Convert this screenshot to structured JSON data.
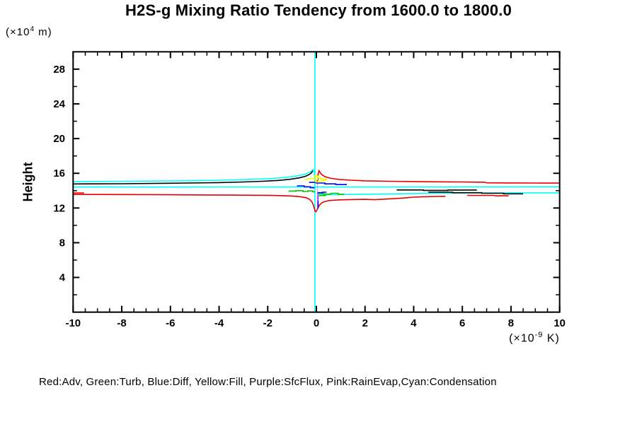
{
  "title": "H2S-g Mixing Ratio Tendency from 1600.0 to 1800.0",
  "axes": {
    "y": {
      "label": "Height",
      "unit_prefix": "(×10",
      "unit_sup": "4",
      "unit_suffix": " m)",
      "min": 0,
      "max": 30,
      "minor_step": 2,
      "major_ticks": [
        4,
        8,
        12,
        16,
        20,
        24,
        28
      ],
      "tick_labels": [
        "4",
        "8",
        "12",
        "16",
        "20",
        "24",
        "28"
      ]
    },
    "x": {
      "unit_prefix": "(×10",
      "unit_sup": "-9",
      "unit_suffix": " K)",
      "min": -10,
      "max": 10,
      "minor_step": 0.5,
      "major_ticks": [
        -10,
        -8,
        -6,
        -4,
        -2,
        0,
        2,
        4,
        6,
        8,
        10
      ],
      "tick_labels": [
        "-10",
        "-8",
        "-6",
        "-4",
        "-2",
        "0",
        "2",
        "4",
        "6",
        "8",
        "10"
      ]
    }
  },
  "legend": {
    "text": "Red:Adv, Green:Turb, Blue:Diff, Yellow:Fill, Purple:SfcFlux, Pink:RainEvap,Cyan:Condensation",
    "entries": [
      {
        "name": "Adv",
        "color": "#e80000"
      },
      {
        "name": "Turb",
        "color": "#00c800"
      },
      {
        "name": "Diff",
        "color": "#0000ff"
      },
      {
        "name": "Fill",
        "color": "#ffff00"
      },
      {
        "name": "SfcFlux",
        "color": "#a020f0"
      },
      {
        "name": "RainEvap",
        "color": "#f0a0f0"
      },
      {
        "name": "Condensation",
        "color": "#00ffff"
      }
    ]
  },
  "chart_data": {
    "type": "line",
    "subtype": "contour-tendency-profile",
    "title": "H2S-g Mixing Ratio Tendency from 1600.0 to 1800.0",
    "xlabel": "(×10^-9 K)",
    "ylabel": "Height (×10^4 m)",
    "xlim": [
      -10,
      10
    ],
    "ylim": [
      0,
      30
    ],
    "grid": false,
    "contours": [
      {
        "name": "condensation-vline",
        "color": "#00ffff",
        "points": [
          [
            -0.06,
            0.05
          ],
          [
            -0.06,
            29.95
          ]
        ]
      },
      {
        "name": "rainevap-vline",
        "color": "#f0a0f0",
        "points": [
          [
            0.045,
            11.8
          ],
          [
            0.045,
            15.9
          ]
        ]
      },
      {
        "name": "sfcflux-vline",
        "color": "#a020f0",
        "points": [
          [
            0.07,
            12.95
          ],
          [
            0.07,
            13.75
          ]
        ]
      },
      {
        "name": "condensation-left-curve",
        "color": "#00ffff",
        "points": [
          [
            -10,
            15.05
          ],
          [
            -8,
            15.08
          ],
          [
            -6,
            15.12
          ],
          [
            -5,
            15.15
          ],
          [
            -4,
            15.2
          ],
          [
            -3,
            15.27
          ],
          [
            -2.2,
            15.35
          ],
          [
            -1.6,
            15.45
          ],
          [
            -1.1,
            15.58
          ],
          [
            -0.75,
            15.72
          ],
          [
            -0.5,
            15.88
          ],
          [
            -0.32,
            16.05
          ],
          [
            -0.2,
            16.25
          ],
          [
            -0.13,
            16.45
          ],
          [
            -0.1,
            16.2
          ],
          [
            -0.07,
            15.6
          ],
          [
            -0.06,
            15.0
          ]
        ]
      },
      {
        "name": "adv-top-right-curve",
        "color": "#e80000",
        "points": [
          [
            0.03,
            14.95
          ],
          [
            0.05,
            15.5
          ],
          [
            0.08,
            15.95
          ],
          [
            0.11,
            16.3
          ],
          [
            0.15,
            16.1
          ],
          [
            0.22,
            15.85
          ],
          [
            0.35,
            15.62
          ],
          [
            0.55,
            15.45
          ],
          [
            0.9,
            15.3
          ],
          [
            1.4,
            15.2
          ],
          [
            2,
            15.13
          ],
          [
            3,
            15.08
          ],
          [
            4,
            15.05
          ],
          [
            5,
            15.02
          ],
          [
            6,
            15.0
          ],
          [
            6.9,
            14.97
          ],
          [
            7.0,
            14.9
          ],
          [
            8,
            14.89
          ],
          [
            9,
            14.88
          ],
          [
            10,
            14.87
          ]
        ]
      },
      {
        "name": "total-left-curve",
        "color": "#000000",
        "points": [
          [
            -10,
            14.77
          ],
          [
            -8,
            14.8
          ],
          [
            -6,
            14.85
          ],
          [
            -4,
            14.93
          ],
          [
            -3,
            15.0
          ],
          [
            -2.2,
            15.08
          ],
          [
            -1.6,
            15.17
          ],
          [
            -1.1,
            15.3
          ],
          [
            -0.7,
            15.47
          ],
          [
            -0.45,
            15.65
          ],
          [
            -0.3,
            15.85
          ],
          [
            -0.2,
            16.05
          ],
          [
            -0.15,
            16.3
          ]
        ]
      },
      {
        "name": "condensation-mid-horizontal",
        "color": "#00ffff",
        "points": [
          [
            -10,
            14.42
          ],
          [
            -4,
            14.43
          ],
          [
            2,
            14.42
          ],
          [
            10,
            14.45
          ]
        ]
      },
      {
        "name": "condensation-bottom-right",
        "color": "#00ffff",
        "points": [
          [
            0.06,
            13.5
          ],
          [
            0.5,
            13.53
          ],
          [
            1.5,
            13.57
          ],
          [
            3,
            13.62
          ],
          [
            4.5,
            13.68
          ],
          [
            6,
            13.73
          ],
          [
            8,
            13.75
          ],
          [
            10,
            13.75
          ]
        ]
      },
      {
        "name": "adv-left-short",
        "color": "#e80000",
        "points": [
          [
            -10,
            13.73
          ],
          [
            -9.55,
            13.73
          ]
        ]
      },
      {
        "name": "adv-bottom-curve",
        "color": "#e80000",
        "points": [
          [
            -10,
            13.56
          ],
          [
            -8,
            13.55
          ],
          [
            -6,
            13.53
          ],
          [
            -4.5,
            13.5
          ],
          [
            -3,
            13.48
          ],
          [
            -2,
            13.46
          ],
          [
            -1.5,
            13.43
          ],
          [
            -1,
            13.38
          ],
          [
            -0.65,
            13.3
          ],
          [
            -0.42,
            13.18
          ],
          [
            -0.28,
            13.0
          ],
          [
            -0.18,
            12.7
          ],
          [
            -0.12,
            12.3
          ],
          [
            -0.08,
            11.9
          ],
          [
            -0.05,
            11.6
          ],
          [
            -0.02,
            11.57
          ],
          [
            0.02,
            11.75
          ],
          [
            0.07,
            12.05
          ],
          [
            0.13,
            12.35
          ],
          [
            0.22,
            12.6
          ],
          [
            0.35,
            12.75
          ],
          [
            0.55,
            12.87
          ],
          [
            0.9,
            12.93
          ],
          [
            1.4,
            12.97
          ],
          [
            2,
            13.0
          ],
          [
            2.4,
            12.96
          ],
          [
            2.8,
            13.02
          ],
          [
            3.2,
            13.08
          ],
          [
            3.6,
            13.15
          ],
          [
            4,
            13.25
          ],
          [
            4.4,
            13.3
          ],
          [
            4.9,
            13.33
          ],
          [
            5.3,
            13.35
          ]
        ]
      },
      {
        "name": "adv-right-mid-segment",
        "color": "#e80000",
        "points": [
          [
            6.2,
            13.45
          ],
          [
            7.3,
            13.45
          ],
          [
            7.35,
            13.4
          ],
          [
            7.9,
            13.4
          ]
        ]
      },
      {
        "name": "total-right-segment-1",
        "color": "#000000",
        "points": [
          [
            3.3,
            14.08
          ],
          [
            4.4,
            14.08
          ],
          [
            4.4,
            14.03
          ],
          [
            5.4,
            14.03
          ],
          [
            5.4,
            14.07
          ],
          [
            6.6,
            14.07
          ]
        ]
      },
      {
        "name": "total-right-segment-2",
        "color": "#000000",
        "points": [
          [
            4.6,
            13.82
          ],
          [
            5.6,
            13.82
          ],
          [
            5.6,
            13.76
          ],
          [
            6.8,
            13.76
          ],
          [
            6.8,
            13.7
          ],
          [
            7.7,
            13.7
          ],
          [
            7.7,
            13.63
          ],
          [
            8.5,
            13.63
          ]
        ]
      },
      {
        "name": "turb-left-zigzag",
        "color": "#00c800",
        "points": [
          [
            -1.15,
            13.95
          ],
          [
            -0.85,
            13.95
          ],
          [
            -0.85,
            14.0
          ],
          [
            -0.55,
            14.0
          ],
          [
            -0.55,
            13.9
          ],
          [
            -0.35,
            13.9
          ],
          [
            -0.35,
            13.97
          ],
          [
            -0.15,
            13.97
          ],
          [
            -0.15,
            13.87
          ],
          [
            -0.05,
            13.87
          ]
        ]
      },
      {
        "name": "turb-right-zigzag",
        "color": "#00c800",
        "points": [
          [
            0.06,
            13.67
          ],
          [
            0.3,
            13.67
          ],
          [
            0.3,
            13.6
          ],
          [
            0.6,
            13.6
          ],
          [
            0.6,
            13.7
          ],
          [
            0.9,
            13.7
          ],
          [
            0.9,
            13.58
          ],
          [
            1.15,
            13.58
          ]
        ]
      },
      {
        "name": "turb-right-stub",
        "color": "#00c800",
        "points": [
          [
            0.1,
            13.44
          ],
          [
            0.4,
            13.44
          ]
        ]
      },
      {
        "name": "diff-right-segments",
        "color": "#0000ff",
        "points": [
          [
            -0.3,
            14.95
          ],
          [
            0,
            14.95
          ],
          [
            0,
            14.88
          ],
          [
            0.35,
            14.88
          ],
          [
            0.35,
            14.78
          ],
          [
            0.8,
            14.78
          ],
          [
            0.8,
            14.7
          ],
          [
            1.25,
            14.7
          ]
        ]
      },
      {
        "name": "diff-left-zigzag",
        "color": "#0000ff",
        "points": [
          [
            -0.8,
            14.55
          ],
          [
            -0.5,
            14.55
          ],
          [
            -0.5,
            14.45
          ],
          [
            -0.25,
            14.45
          ],
          [
            -0.25,
            14.33
          ],
          [
            -0.07,
            14.33
          ]
        ]
      },
      {
        "name": "diff-mid-small",
        "color": "#0000ff",
        "points": [
          [
            0.05,
            13.76
          ],
          [
            0.25,
            13.76
          ],
          [
            0.25,
            13.82
          ],
          [
            0.42,
            13.82
          ]
        ]
      },
      {
        "name": "diff-spike-top",
        "color": "#0000ff",
        "points": [
          [
            0.07,
            15.25
          ],
          [
            0.07,
            15.8
          ]
        ]
      },
      {
        "name": "diff-spike-bottom",
        "color": "#0000ff",
        "points": [
          [
            0.07,
            11.95
          ],
          [
            0.07,
            12.88
          ]
        ]
      },
      {
        "name": "fill-zigzag",
        "color": "#ffff00",
        "points": [
          [
            -0.5,
            15.3
          ],
          [
            -0.3,
            15.3
          ],
          [
            -0.3,
            15.4
          ],
          [
            -0.12,
            15.4
          ],
          [
            -0.12,
            15.27
          ],
          [
            0.04,
            15.27
          ],
          [
            0.04,
            15.47
          ],
          [
            0.18,
            15.47
          ],
          [
            0.18,
            15.32
          ],
          [
            0.42,
            15.32
          ],
          [
            0.42,
            15.2
          ],
          [
            0.28,
            15.2
          ],
          [
            0.28,
            15.1
          ],
          [
            0.1,
            15.1
          ],
          [
            0.1,
            15.0
          ],
          [
            -0.05,
            15.0
          ]
        ]
      },
      {
        "name": "fill-loop",
        "color": "#ffff00",
        "points": [
          [
            -0.06,
            15.58
          ],
          [
            0.09,
            15.58
          ],
          [
            0.09,
            15.7
          ],
          [
            -0.06,
            15.7
          ],
          [
            -0.06,
            15.58
          ]
        ]
      }
    ]
  }
}
